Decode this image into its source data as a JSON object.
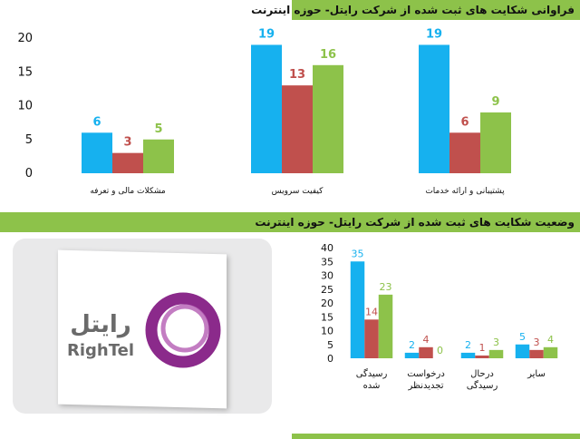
{
  "header": {
    "top_title": "فراوانی شکایت های ثبت شده از شرکت رایتل- حوزه اینترنت",
    "mid_title": "وضعیت شکایت های ثبت شده از شرکت رایتل- حوزه اینترنت"
  },
  "logo": {
    "text_fa": "رایتل",
    "text_en": "RighTel"
  },
  "colors": {
    "band": "#8dc24a",
    "series": [
      "#16b1ef",
      "#c0504d",
      "#8dc24a"
    ],
    "logo": "#8b2a8b"
  },
  "chart_data": [
    {
      "type": "bar",
      "categories": [
        "مشکلات مالی و تعرفه",
        "کیفیت سرویس",
        "پشتیبانی و ارائه خدمات"
      ],
      "series": [
        {
          "values": [
            6,
            19,
            19
          ]
        },
        {
          "values": [
            3,
            13,
            6
          ]
        },
        {
          "values": [
            5,
            16,
            9
          ]
        }
      ],
      "ylim": [
        0,
        20
      ],
      "yticks": [
        0,
        5,
        10,
        15,
        20
      ],
      "grid": false,
      "data_labels": true
    },
    {
      "type": "bar",
      "categories": [
        "رسیدگی شده",
        "درخواست تجدیدنظر",
        "درحال رسیدگی",
        "سایر"
      ],
      "series": [
        {
          "values": [
            35,
            2,
            2,
            5
          ]
        },
        {
          "values": [
            14,
            4,
            1,
            3
          ]
        },
        {
          "values": [
            23,
            0,
            3,
            4
          ]
        }
      ],
      "ylim": [
        0,
        40
      ],
      "yticks": [
        0,
        5,
        10,
        15,
        20,
        25,
        30,
        35,
        40
      ],
      "grid": false,
      "data_labels": true
    }
  ]
}
